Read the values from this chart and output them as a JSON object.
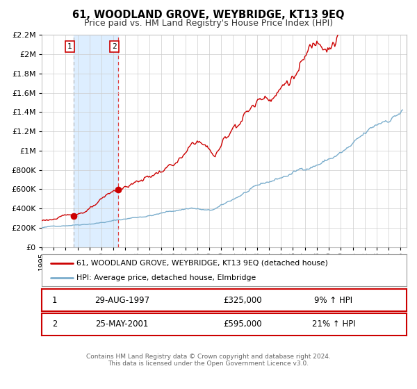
{
  "title": "61, WOODLAND GROVE, WEYBRIDGE, KT13 9EQ",
  "subtitle": "Price paid vs. HM Land Registry's House Price Index (HPI)",
  "legend_line1": "61, WOODLAND GROVE, WEYBRIDGE, KT13 9EQ (detached house)",
  "legend_line2": "HPI: Average price, detached house, Elmbridge",
  "transaction1_date": "29-AUG-1997",
  "transaction1_price": "£325,000",
  "transaction1_hpi": "9% ↑ HPI",
  "transaction2_date": "25-MAY-2001",
  "transaction2_price": "£595,000",
  "transaction2_hpi": "21% ↑ HPI",
  "footer1": "Contains HM Land Registry data © Crown copyright and database right 2024.",
  "footer2": "This data is licensed under the Open Government Licence v3.0.",
  "red_color": "#cc0000",
  "blue_color": "#7aadcc",
  "vline1_color": "#bbbbbb",
  "vline2_color": "#dd4444",
  "shade_color": "#ddeeff",
  "grid_color": "#cccccc",
  "background_color": "#ffffff",
  "ylim": [
    0,
    2200000
  ],
  "xlim_start": 1995.0,
  "xlim_end": 2025.5,
  "transaction1_x": 1997.65,
  "transaction1_y": 325000,
  "transaction2_x": 2001.38,
  "transaction2_y": 595000,
  "title_fontsize": 10.5,
  "subtitle_fontsize": 9
}
